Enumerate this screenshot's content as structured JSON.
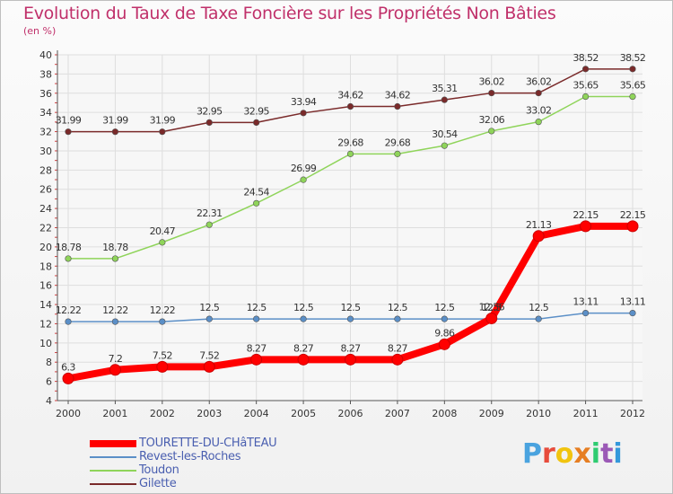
{
  "chart_data": {
    "type": "line",
    "title": "Evolution du Taux de Taxe Foncière sur les Propriétés Non Bâties",
    "subtitle": "(en %)",
    "x": [
      "2000",
      "2001",
      "2002",
      "2003",
      "2004",
      "2005",
      "2006",
      "2007",
      "2008",
      "2009",
      "2010",
      "2011",
      "2012"
    ],
    "ylim": [
      4,
      40
    ],
    "yticks": [
      "4",
      "6",
      "8",
      "10",
      "12",
      "14",
      "16",
      "18",
      "20",
      "22",
      "24",
      "26",
      "28",
      "30",
      "32",
      "34",
      "36",
      "38",
      "40"
    ],
    "grid": true,
    "legend_position": "bottom-left",
    "series": [
      {
        "name": "TOURETTE-DU-CHâTEAU",
        "color": "#ff0000",
        "values": [
          6.3,
          7.2,
          7.52,
          7.52,
          8.27,
          8.27,
          8.27,
          8.27,
          9.86,
          12.56,
          21.13,
          22.15,
          22.15
        ],
        "labels": [
          "6.3",
          "7.2",
          "7.52",
          "7.52",
          "8.27",
          "8.27",
          "8.27",
          "8.27",
          "9.86",
          "12.56",
          "21.13",
          "22.15",
          "22.15"
        ]
      },
      {
        "name": "Revest-les-Roches",
        "color": "#5b8fc7",
        "values": [
          12.22,
          12.22,
          12.22,
          12.5,
          12.5,
          12.5,
          12.5,
          12.5,
          12.5,
          12.5,
          12.5,
          13.11,
          13.11
        ],
        "labels": [
          "12.22",
          "12.22",
          "12.22",
          "12.5",
          "12.5",
          "12.5",
          "12.5",
          "12.5",
          "12.5",
          "12.5",
          "12.5",
          "13.11",
          "13.11"
        ]
      },
      {
        "name": "Toudon",
        "color": "#8fd45a",
        "values": [
          18.78,
          18.78,
          20.47,
          22.31,
          24.54,
          26.99,
          29.68,
          29.68,
          30.54,
          32.06,
          33.02,
          35.65,
          35.65
        ],
        "labels": [
          "18.78",
          "18.78",
          "20.47",
          "22.31",
          "24.54",
          "26.99",
          "29.68",
          "29.68",
          "30.54",
          "32.06",
          "33.02",
          "35.65",
          "35.65"
        ]
      },
      {
        "name": "Gilette",
        "color": "#7a2a2a",
        "values": [
          31.99,
          31.99,
          31.99,
          32.95,
          32.95,
          33.94,
          34.62,
          34.62,
          35.31,
          36.02,
          36.02,
          38.52,
          38.52
        ],
        "labels": [
          "31.99",
          "31.99",
          "31.99",
          "32.95",
          "32.95",
          "33.94",
          "34.62",
          "34.62",
          "35.31",
          "36.02",
          "36.02",
          "38.52",
          "38.52"
        ]
      }
    ]
  },
  "logo": {
    "letters": [
      "P",
      "r",
      "o",
      "x",
      "i",
      "t",
      "i"
    ],
    "colors": [
      "#4aa3df",
      "#e74c3c",
      "#f1c40f",
      "#e67e22",
      "#2ecc71",
      "#9b59b6",
      "#3498db"
    ]
  }
}
